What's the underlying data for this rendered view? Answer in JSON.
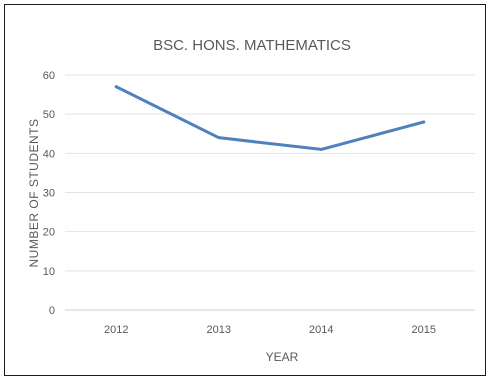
{
  "chart_data": {
    "type": "line",
    "title": "BSC. HONS. MATHEMATICS",
    "xlabel": "YEAR",
    "ylabel": "NUMBER OF STUDENTS",
    "categories": [
      "2012",
      "2013",
      "2014",
      "2015"
    ],
    "series": [
      {
        "values": [
          57,
          44,
          41,
          48
        ],
        "color": "#4F81BD"
      }
    ],
    "ylim": [
      0,
      60
    ],
    "yticks": [
      "0",
      "10",
      "20",
      "30",
      "40",
      "50",
      "60"
    ],
    "grid": true,
    "legend": "none"
  }
}
